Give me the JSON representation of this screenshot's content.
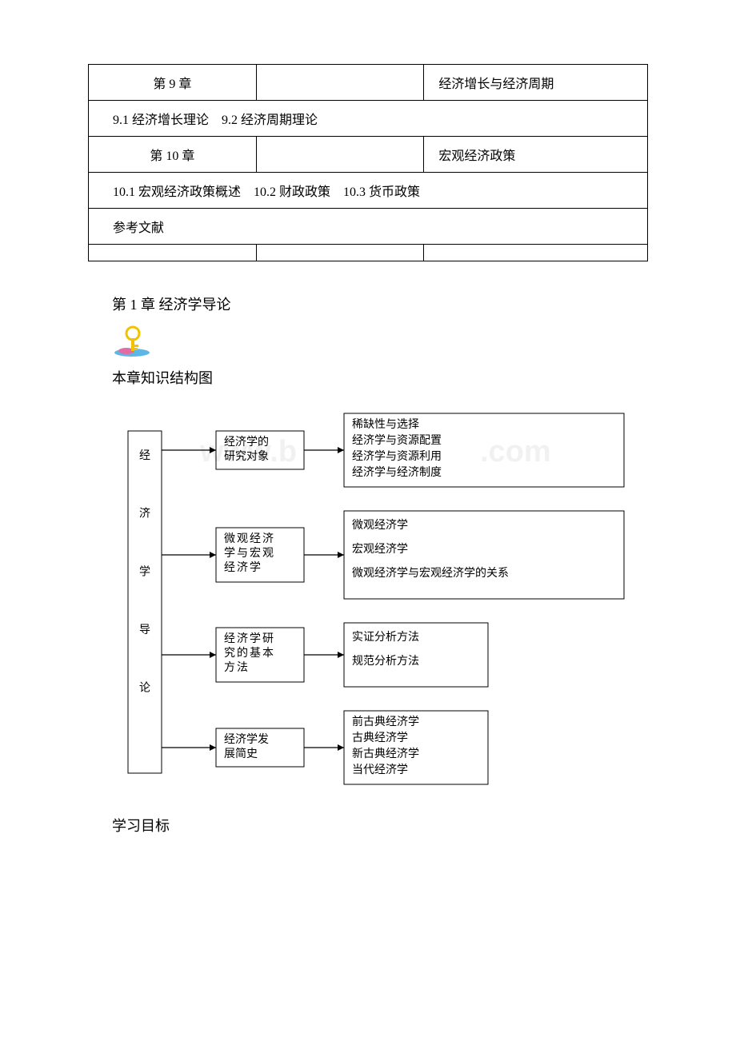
{
  "table": {
    "rows": [
      {
        "c1": "第 9 章",
        "c2": "",
        "c3": "经济增长与经济周期"
      },
      {
        "span": "9.1 经济增长理论　9.2 经济周期理论"
      },
      {
        "c1": "第 10 章",
        "c2": "",
        "c3": "宏观经济政策"
      },
      {
        "span": "10.1 宏观经济政策概述　10.2 财政政策　10.3 货币政策"
      },
      {
        "ref": "参考文献"
      },
      {
        "empty": true
      }
    ]
  },
  "chapter_title": "第 1 章 经济学导论",
  "section_heading": "本章知识结构图",
  "goals_title": "学习目标",
  "watermark": {
    "left": "www.b",
    "right": ".com",
    "color": "#d9d9d9",
    "fontsize": 38
  },
  "diagram": {
    "spine_label": "经 济 学 导 论",
    "branches": [
      {
        "mid": "经济学的研究对象",
        "right_lines": [
          "稀缺性与选择",
          "经济学与资源配置",
          "经济学与资源利用",
          "经济学与经济制度"
        ]
      },
      {
        "mid": "微观经济学与宏观经济学",
        "right_lines": [
          "微观经济学",
          "宏观经济学",
          "微观经济学与宏观经济学的关系"
        ]
      },
      {
        "mid": "经济学研究的基本方法",
        "right_lines": [
          "实证分析方法",
          "规范分析方法"
        ]
      },
      {
        "mid": "经济学发展简史",
        "right_lines": [
          "前古典经济学",
          "古典经济学",
          "新古典经济学",
          "当代经济学"
        ]
      }
    ]
  },
  "colors": {
    "border": "#000000",
    "text": "#000000",
    "background": "#ffffff",
    "key_icon_yellow": "#f2c200",
    "key_icon_pink": "#e26da6",
    "key_icon_blue": "#5bb8e6"
  }
}
